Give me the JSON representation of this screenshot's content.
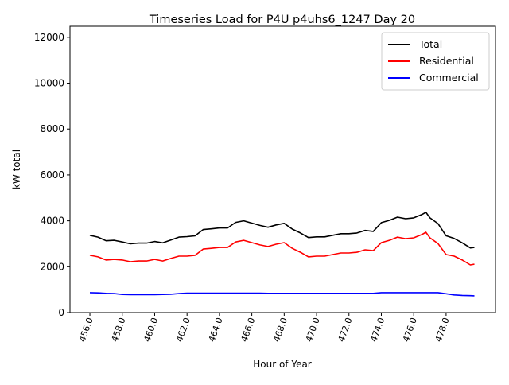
{
  "chart_data": {
    "type": "line",
    "title": "Timeseries Load for P4U p4uhs6_1247  Day 20",
    "xlabel": "Hour of Year",
    "ylabel": "kW total",
    "xlim": [
      454.77,
      481.05
    ],
    "ylim": [
      0,
      12480
    ],
    "xticks": [
      456,
      458,
      460,
      462,
      464,
      466,
      468,
      470,
      472,
      474,
      476,
      478
    ],
    "xtick_labels": [
      "456.0",
      "458.0",
      "460.0",
      "462.0",
      "464.0",
      "466.0",
      "468.0",
      "470.0",
      "472.0",
      "474.0",
      "476.0",
      "478.0"
    ],
    "yticks": [
      0,
      2000,
      4000,
      6000,
      8000,
      10000,
      12000
    ],
    "ytick_labels": [
      "0",
      "2000",
      "4000",
      "6000",
      "8000",
      "10000",
      "12000"
    ],
    "grid": false,
    "legend_position": "top-right",
    "x": [
      456.0,
      456.5,
      457.0,
      457.5,
      458.0,
      458.5,
      459.0,
      459.5,
      460.0,
      460.5,
      461.0,
      461.5,
      462.0,
      462.5,
      463.0,
      463.5,
      464.0,
      464.5,
      465.0,
      465.5,
      466.0,
      466.5,
      467.0,
      467.5,
      468.0,
      468.5,
      469.0,
      469.5,
      470.0,
      470.5,
      471.0,
      471.5,
      472.0,
      472.5,
      473.0,
      473.5,
      474.0,
      474.5,
      475.0,
      475.5,
      476.0,
      476.5,
      476.75,
      477.0,
      477.5,
      478.0,
      478.5,
      479.0,
      479.5,
      479.75
    ],
    "series": [
      {
        "name": "Total",
        "color": "#000000",
        "values": [
          3370,
          3290,
          3130,
          3150,
          3080,
          3000,
          3030,
          3030,
          3100,
          3040,
          3160,
          3290,
          3310,
          3350,
          3620,
          3650,
          3690,
          3690,
          3930,
          4000,
          3900,
          3800,
          3720,
          3820,
          3890,
          3640,
          3470,
          3270,
          3300,
          3300,
          3370,
          3440,
          3440,
          3470,
          3580,
          3540,
          3920,
          4020,
          4160,
          4090,
          4130,
          4270,
          4370,
          4130,
          3880,
          3350,
          3230,
          3040,
          2820,
          2840
        ]
      },
      {
        "name": "Residential",
        "color": "#ff0000",
        "values": [
          2500,
          2430,
          2290,
          2320,
          2290,
          2220,
          2250,
          2250,
          2320,
          2250,
          2360,
          2460,
          2460,
          2500,
          2770,
          2800,
          2840,
          2840,
          3080,
          3150,
          3050,
          2950,
          2880,
          2980,
          3050,
          2800,
          2630,
          2430,
          2460,
          2460,
          2530,
          2600,
          2600,
          2630,
          2740,
          2700,
          3050,
          3150,
          3290,
          3220,
          3260,
          3400,
          3500,
          3260,
          3010,
          2530,
          2460,
          2290,
          2080,
          2110
        ]
      },
      {
        "name": "Commercial",
        "color": "#0000ff",
        "values": [
          870,
          860,
          840,
          830,
          790,
          780,
          780,
          780,
          780,
          790,
          800,
          830,
          850,
          850,
          850,
          850,
          850,
          850,
          850,
          850,
          850,
          850,
          840,
          840,
          840,
          840,
          840,
          840,
          840,
          840,
          840,
          840,
          840,
          840,
          840,
          840,
          870,
          870,
          870,
          870,
          870,
          870,
          870,
          870,
          870,
          820,
          770,
          750,
          740,
          730
        ]
      }
    ]
  }
}
